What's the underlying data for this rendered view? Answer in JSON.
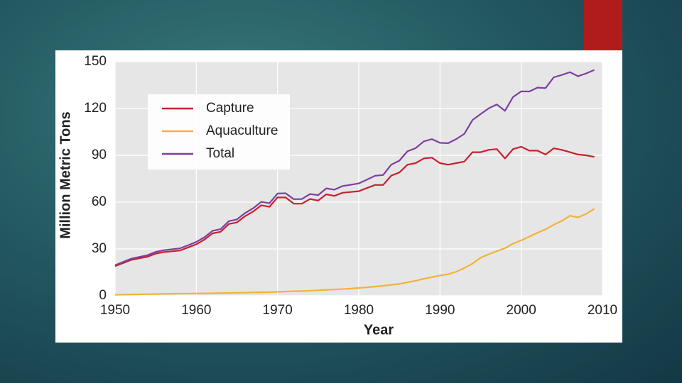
{
  "chart_data": {
    "type": "line",
    "xlabel": "Year",
    "ylabel": "Million Metric Tons",
    "x": [
      1950,
      1951,
      1952,
      1953,
      1954,
      1955,
      1956,
      1957,
      1958,
      1959,
      1960,
      1961,
      1962,
      1963,
      1964,
      1965,
      1966,
      1967,
      1968,
      1969,
      1970,
      1971,
      1972,
      1973,
      1974,
      1975,
      1976,
      1977,
      1978,
      1979,
      1980,
      1981,
      1982,
      1983,
      1984,
      1985,
      1986,
      1987,
      1988,
      1989,
      1990,
      1991,
      1992,
      1993,
      1994,
      1995,
      1996,
      1997,
      1998,
      1999,
      2000,
      2001,
      2002,
      2003,
      2004,
      2005,
      2006,
      2007,
      2008,
      2009
    ],
    "series": [
      {
        "name": "Capture",
        "color": "#c8202f",
        "values": [
          19,
          21,
          23,
          24,
          25,
          27,
          28,
          28.5,
          29,
          31,
          33,
          36,
          40,
          41,
          46,
          47,
          51,
          54,
          58,
          57,
          63,
          63,
          59,
          59,
          62,
          61,
          65,
          64,
          66,
          66.5,
          67,
          69,
          71,
          71,
          77,
          79,
          84,
          85,
          88,
          88.5,
          85,
          84,
          85,
          86,
          92,
          92,
          93.5,
          94,
          88,
          94,
          95.5,
          93,
          93,
          90.5,
          94.5,
          93.5,
          92,
          90.5,
          90,
          89
        ]
      },
      {
        "name": "Aquaculture",
        "color": "#f2b23a",
        "values": [
          0.6,
          0.7,
          0.8,
          0.9,
          1.0,
          1.1,
          1.2,
          1.3,
          1.4,
          1.4,
          1.5,
          1.5,
          1.6,
          1.7,
          1.8,
          1.9,
          2.0,
          2.1,
          2.2,
          2.3,
          2.5,
          2.7,
          2.9,
          3.0,
          3.2,
          3.5,
          3.8,
          4.0,
          4.3,
          4.6,
          5.0,
          5.4,
          5.9,
          6.4,
          7.0,
          7.6,
          8.6,
          9.6,
          10.9,
          11.9,
          13.0,
          13.8,
          15.4,
          17.8,
          20.6,
          24.4,
          26.6,
          28.6,
          30.5,
          33.4,
          35.5,
          37.9,
          40.4,
          42.6,
          45.5,
          48.0,
          51.3,
          50.2,
          52.5,
          55.7
        ]
      },
      {
        "name": "Total",
        "color": "#7d3fa0",
        "values": [
          19.6,
          21.7,
          23.8,
          24.9,
          26.0,
          28.1,
          29.2,
          29.8,
          30.4,
          32.4,
          34.5,
          37.5,
          41.6,
          42.7,
          47.8,
          48.9,
          53.0,
          56.1,
          60.2,
          59.3,
          65.5,
          65.7,
          61.9,
          62.0,
          65.2,
          64.5,
          68.8,
          68.0,
          70.3,
          71.1,
          72.0,
          74.4,
          76.9,
          77.4,
          84.0,
          86.6,
          92.6,
          94.6,
          98.9,
          100.4,
          98.0,
          97.8,
          100.4,
          103.8,
          112.6,
          116.4,
          120.1,
          122.6,
          118.5,
          127.4,
          131.0,
          130.9,
          133.4,
          133.1,
          140.0,
          141.5,
          143.3,
          140.7,
          142.5,
          144.7
        ]
      }
    ],
    "xlim": [
      1950,
      2010
    ],
    "xticks": [
      1950,
      1960,
      1970,
      1980,
      1990,
      2000,
      2010
    ],
    "ylim": [
      0,
      150
    ],
    "yticks": [
      0,
      30,
      60,
      90,
      120,
      150
    ],
    "grid": true,
    "legend": "upper left"
  }
}
